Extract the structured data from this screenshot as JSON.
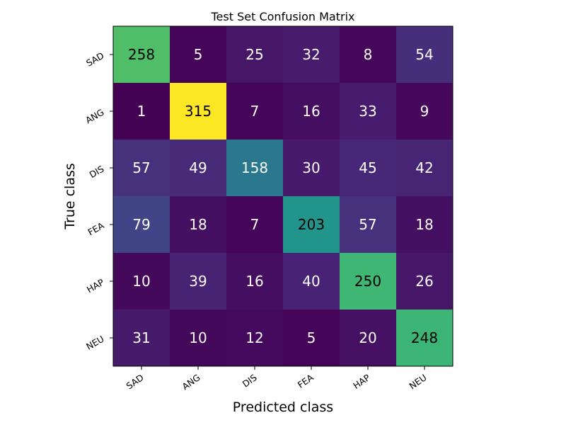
{
  "chart_data": {
    "type": "heatmap",
    "title": "Test Set Confusion Matrix",
    "xlabel": "Predicted class",
    "ylabel": "True class",
    "x_categories": [
      "SAD",
      "ANG",
      "DIS",
      "FEA",
      "HAP",
      "NEU"
    ],
    "y_categories": [
      "SAD",
      "ANG",
      "DIS",
      "FEA",
      "HAP",
      "NEU"
    ],
    "values": [
      [
        258,
        5,
        25,
        32,
        8,
        54
      ],
      [
        1,
        315,
        7,
        16,
        33,
        9
      ],
      [
        57,
        49,
        158,
        30,
        45,
        42
      ],
      [
        79,
        18,
        7,
        203,
        57,
        18
      ],
      [
        10,
        39,
        16,
        40,
        250,
        26
      ],
      [
        31,
        10,
        12,
        5,
        20,
        248
      ]
    ],
    "colormap": "viridis",
    "vmin": 1,
    "vmax": 315,
    "grid": false,
    "legend": "none"
  }
}
